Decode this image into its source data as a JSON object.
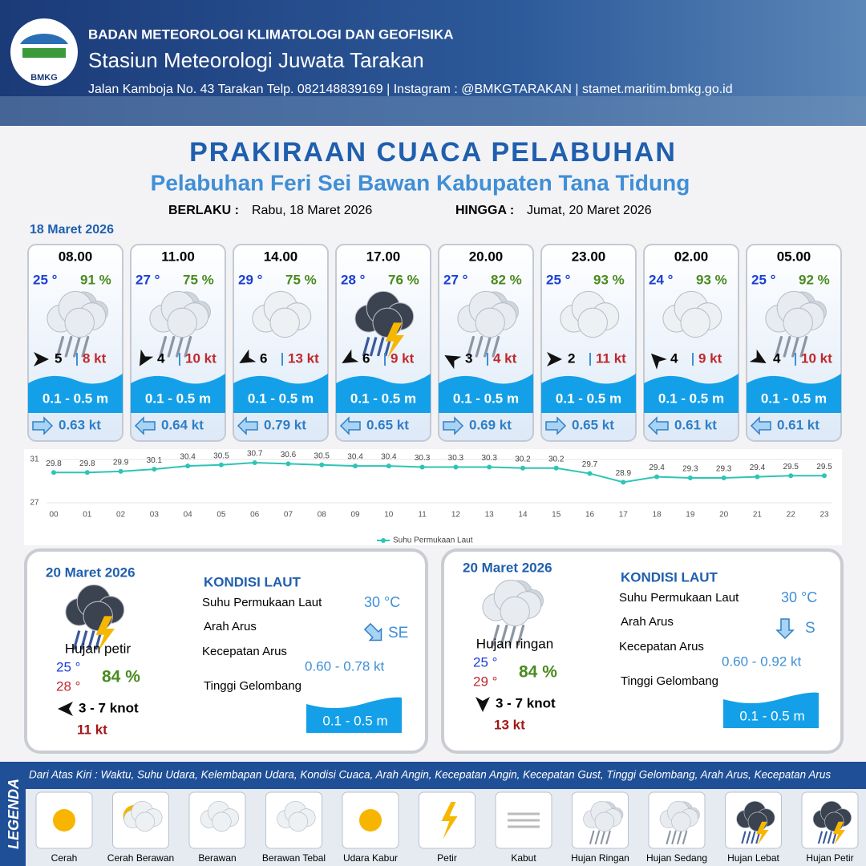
{
  "header": {
    "agency": "BADAN METEOROLOGI KLIMATOLOGI DAN GEOFISIKA",
    "station": "Stasiun Meteorologi Juwata Tarakan",
    "address": "Jalan Kamboja No. 43 Tarakan  Telp. 082148839169 | Instagram : @BMKGTARAKAN | stamet.maritim.bmkg.go.id",
    "logo": "BMKG"
  },
  "title": "PRAKIRAAN CUACA PELABUHAN",
  "subtitle": "Pelabuhan Feri Sei Bawan Kabupaten Tana Tidung",
  "validity": {
    "from_label": "BERLAKU :",
    "from": "Rabu, 18 Maret 2026",
    "to_label": "HINGGA :",
    "to": "Jumat, 20 Maret 2026"
  },
  "day1_label": "18 Maret 2026",
  "forecasts": [
    {
      "time": "08.00",
      "temp": "25 °",
      "rh": "91 %",
      "wind": "5",
      "gust": "8 kt",
      "wave": "0.1 - 0.5 m",
      "current": "0.63 kt",
      "wind_dir_deg": 0,
      "current_dir_deg": 0
    },
    {
      "time": "11.00",
      "temp": "27 °",
      "rh": "75 %",
      "wind": "4",
      "gust": "10 kt",
      "wave": "0.1 - 0.5 m",
      "current": "0.64 kt",
      "wind_dir_deg": 120,
      "current_dir_deg": 180
    },
    {
      "time": "14.00",
      "temp": "29 °",
      "rh": "75 %",
      "wind": "6",
      "gust": "13 kt",
      "wave": "0.1 - 0.5 m",
      "current": "0.79 kt",
      "wind_dir_deg": 150,
      "current_dir_deg": 180
    },
    {
      "time": "17.00",
      "temp": "28 °",
      "rh": "76 %",
      "wind": "6",
      "gust": "9 kt",
      "wave": "0.1 - 0.5 m",
      "current": "0.65 kt",
      "wind_dir_deg": 150,
      "current_dir_deg": 180
    },
    {
      "time": "20.00",
      "temp": "27 °",
      "rh": "82 %",
      "wind": "3",
      "gust": "4 kt",
      "wave": "0.1 - 0.5 m",
      "current": "0.69 kt",
      "wind_dir_deg": 210,
      "current_dir_deg": 0
    },
    {
      "time": "23.00",
      "temp": "25 °",
      "rh": "93 %",
      "wind": "2",
      "gust": "11 kt",
      "wave": "0.1 - 0.5 m",
      "current": "0.65 kt",
      "wind_dir_deg": 0,
      "current_dir_deg": 0
    },
    {
      "time": "02.00",
      "temp": "24 °",
      "rh": "93 %",
      "wind": "4",
      "gust": "9 kt",
      "wave": "0.1 - 0.5 m",
      "current": "0.61 kt",
      "wind_dir_deg": 225,
      "current_dir_deg": 180
    },
    {
      "time": "05.00",
      "temp": "25 °",
      "rh": "92 %",
      "wind": "4",
      "gust": "10 kt",
      "wave": "0.1 - 0.5 m",
      "current": "0.61 kt",
      "wind_dir_deg": 30,
      "current_dir_deg": 180
    }
  ],
  "chart_data": {
    "type": "line",
    "categories": [
      "00",
      "01",
      "02",
      "03",
      "04",
      "05",
      "06",
      "07",
      "08",
      "09",
      "10",
      "11",
      "12",
      "13",
      "14",
      "15",
      "16",
      "17",
      "18",
      "19",
      "20",
      "21",
      "22",
      "23"
    ],
    "series": [
      {
        "name": "Suhu Permukaan Laut",
        "color": "#2ec4b6",
        "values": [
          29.8,
          29.8,
          29.9,
          30.1,
          30.4,
          30.5,
          30.7,
          30.6,
          30.5,
          30.4,
          30.4,
          30.3,
          30.3,
          30.3,
          30.2,
          30.2,
          29.7,
          28.9,
          29.4,
          29.3,
          29.3,
          29.4,
          29.5,
          29.5
        ]
      }
    ],
    "ylim": [
      27,
      31
    ],
    "yticks": [
      27,
      31
    ],
    "legend": "bottom"
  },
  "days": [
    {
      "date": "20 Maret 2026",
      "condition": "Hujan petir",
      "temp_min": "25 °",
      "temp_max": "28 °",
      "rh": "84 %",
      "wind": "3  - 7 knot",
      "gust": "11 kt",
      "sea_title": "KONDISI LAUT",
      "sst_label": "Suhu Permukaan Laut",
      "sst": "30 °C",
      "dir_label": "Arah Arus",
      "dir": "SE",
      "speed_label": "Kecepatan Arus",
      "speed": "0.60 - 0.78 kt",
      "wave_label": "Tinggi Gelombang",
      "wave": "0.1 - 0.5 m"
    },
    {
      "date": "20 Maret 2026",
      "condition": "Hujan ringan",
      "temp_min": "25 °",
      "temp_max": "29 °",
      "rh": "84 %",
      "wind": "3 - 7 knot",
      "gust": "13 kt",
      "sea_title": "KONDISI LAUT",
      "sst_label": "Suhu Permukaan Laut",
      "sst": "30 °C",
      "dir_label": "Arah Arus",
      "dir": "S",
      "speed_label": "Kecepatan Arus",
      "speed": "0.60 - 0.92 kt",
      "wave_label": "Tinggi Gelombang",
      "wave": "0.1 - 0.5 m"
    }
  ],
  "legend": {
    "title": "LEGENDA",
    "description": "Dari Atas Kiri : Waktu, Suhu Udara, Kelembapan Udara, Kondisi Cuaca, Arah Angin, Kecepatan Angin, Kecepatan Gust, Tinggi Gelombang, Arah Arus, Kecepatan Arus",
    "items": [
      "Cerah",
      "Cerah Berawan",
      "Berawan",
      "Berawan Tebal",
      "Udara Kabur",
      "Petir",
      "Kabut",
      "Hujan Ringan",
      "Hujan Sedang",
      "Hujan Lebat",
      "Hujan Petir"
    ]
  }
}
